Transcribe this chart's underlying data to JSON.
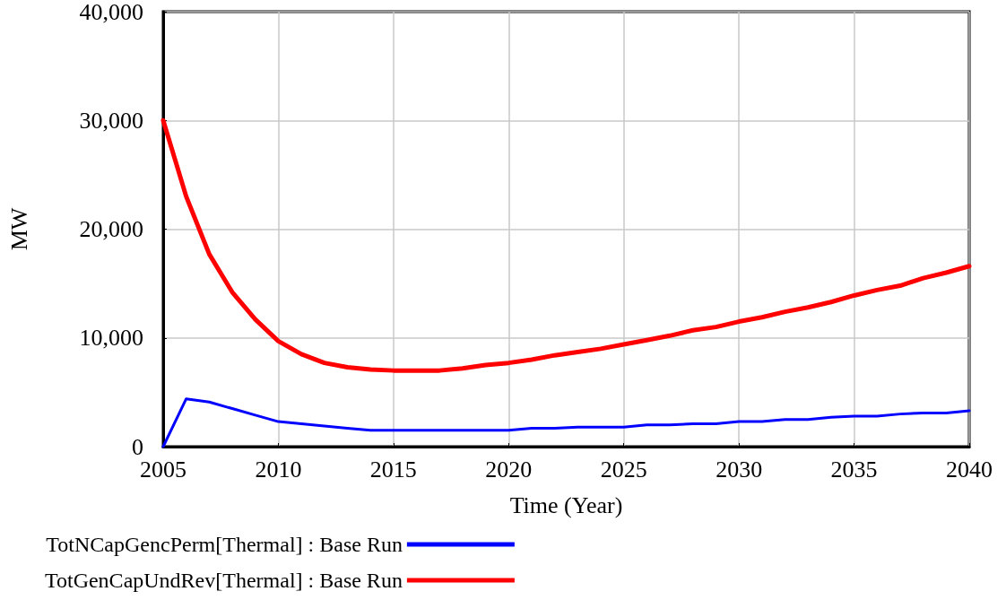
{
  "chart_data": {
    "type": "line",
    "xlabel": "Time (Year)",
    "ylabel": "MW",
    "x": [
      2005,
      2006,
      2007,
      2008,
      2009,
      2010,
      2011,
      2012,
      2013,
      2014,
      2015,
      2016,
      2017,
      2018,
      2019,
      2020,
      2021,
      2022,
      2023,
      2024,
      2025,
      2026,
      2027,
      2028,
      2029,
      2030,
      2031,
      2032,
      2033,
      2034,
      2035,
      2036,
      2037,
      2038,
      2039,
      2040
    ],
    "series": [
      {
        "name": "TotNCapGencPerm[Thermal] : Base Run",
        "color": "#0000ff",
        "values": [
          0,
          4400,
          4100,
          3500,
          2900,
          2300,
          2100,
          1900,
          1700,
          1500,
          1500,
          1500,
          1500,
          1500,
          1500,
          1500,
          1700,
          1700,
          1800,
          1800,
          1800,
          2000,
          2000,
          2100,
          2100,
          2300,
          2300,
          2500,
          2500,
          2700,
          2800,
          2800,
          3000,
          3100,
          3100,
          3300
        ]
      },
      {
        "name": "TotGenCapUndRev[Thermal] : Base Run",
        "color": "#ff0000",
        "values": [
          30000,
          23000,
          17700,
          14200,
          11700,
          9700,
          8500,
          7700,
          7300,
          7100,
          7000,
          7000,
          7000,
          7200,
          7500,
          7700,
          8000,
          8400,
          8700,
          9000,
          9400,
          9800,
          10200,
          10700,
          11000,
          11500,
          11900,
          12400,
          12800,
          13300,
          13900,
          14400,
          14800,
          15500,
          16000,
          16600
        ]
      }
    ],
    "xlim": [
      2005,
      2040
    ],
    "xticks": [
      2005,
      2010,
      2015,
      2020,
      2025,
      2030,
      2035,
      2040
    ],
    "ylim": [
      0,
      40000
    ],
    "yticks": [
      {
        "value": 0,
        "label": "0"
      },
      {
        "value": 10000,
        "label": "10,000"
      },
      {
        "value": 20000,
        "label": "20,000"
      },
      {
        "value": 30000,
        "label": "30,000"
      },
      {
        "value": 40000,
        "label": "40,000"
      }
    ],
    "grid": true,
    "legend": "bottom",
    "marker": "none",
    "line_style": "solid"
  }
}
